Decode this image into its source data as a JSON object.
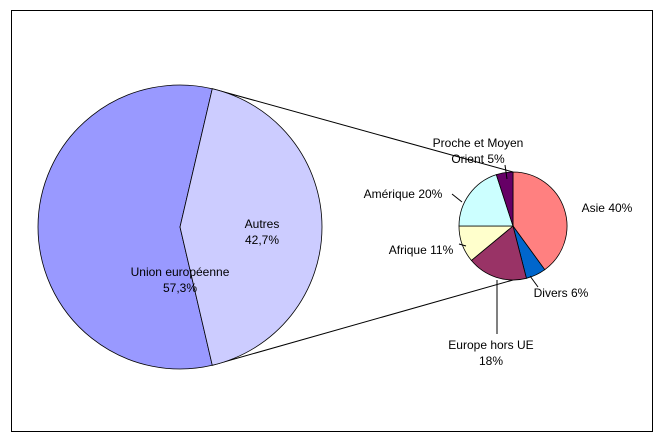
{
  "chart_data": [
    {
      "type": "pie",
      "categories": [
        "Union européenne",
        "Autres"
      ],
      "values": [
        57.3,
        42.7
      ],
      "value_labels": [
        "57,3%",
        "42,7%"
      ],
      "colors": [
        "#9999ff",
        "#ccccff"
      ]
    },
    {
      "type": "pie",
      "categories": [
        "Asie",
        "Divers",
        "Europe hors UE",
        "Afrique",
        "Amérique",
        "Proche et Moyen Orient"
      ],
      "values": [
        40,
        6,
        18,
        11,
        20,
        5
      ],
      "value_labels": [
        "40%",
        "6%",
        "18%",
        "11%",
        "20%",
        "5%"
      ],
      "colors": [
        "#ff8080",
        "#0066cc",
        "#993366",
        "#ffffcc",
        "#ccffff",
        "#660066"
      ]
    }
  ]
}
